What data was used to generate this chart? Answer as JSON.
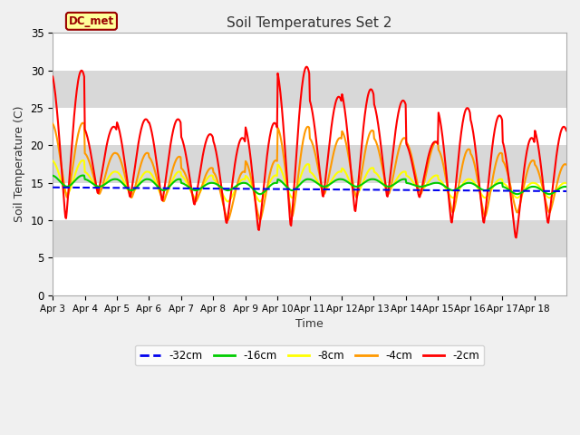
{
  "title": "Soil Temperatures Set 2",
  "xlabel": "Time",
  "ylabel": "Soil Temperature (C)",
  "ylim": [
    0,
    35
  ],
  "yticks": [
    0,
    5,
    10,
    15,
    20,
    25,
    30,
    35
  ],
  "x_labels": [
    "Apr 3",
    "Apr 4",
    "Apr 5",
    "Apr 6",
    "Apr 7",
    "Apr 8",
    "Apr 9",
    "Apr 10",
    "Apr 11",
    "Apr 12",
    "Apr 13",
    "Apr 14",
    "Apr 15",
    "Apr 16",
    "Apr 17",
    "Apr 18"
  ],
  "dc_met_label": "DC_met",
  "legend_labels": [
    "-32cm",
    "-16cm",
    "-8cm",
    "-4cm",
    "-2cm"
  ],
  "colors": {
    "-32cm": "#0000ee",
    "-16cm": "#00cc00",
    "-8cm": "#ffff00",
    "-4cm": "#ff9900",
    "-2cm": "#ff0000"
  },
  "title_fontsize": 11,
  "n_days": 16,
  "pts_per_day": 48,
  "band_colors": [
    "#ffffff",
    "#e8e8e8"
  ],
  "fig_bg": "#f0f0f0",
  "plot_bg": "#e8e8e8",
  "dc_met_bg": "#ffff99",
  "dc_met_border": "#990000",
  "dc_met_text": "#990000",
  "day_peaks_2cm": [
    30,
    22.5,
    23.5,
    23.5,
    21.5,
    21,
    23,
    30.5,
    26.5,
    27.5,
    26,
    20.5,
    25,
    24,
    21,
    22.5
  ],
  "day_mins_2cm": [
    10,
    13.5,
    13,
    12.5,
    12,
    9.5,
    8.5,
    9,
    13,
    11,
    13,
    13,
    9.5,
    9.5,
    7.5,
    9.5
  ],
  "day_peaks_4cm": [
    23,
    19,
    19,
    18.5,
    17,
    16.5,
    18,
    22.5,
    21,
    22,
    21,
    20.5,
    19.5,
    19,
    18,
    17.5
  ],
  "day_mins_4cm": [
    13,
    13.5,
    13,
    12.5,
    12.5,
    10,
    10,
    10.5,
    13.5,
    13,
    13.5,
    13.5,
    11,
    10.5,
    11,
    11
  ],
  "day_peaks_8cm": [
    18,
    16.5,
    16.5,
    16.5,
    16,
    15.5,
    16,
    17.5,
    16.5,
    17,
    16.5,
    16,
    15.5,
    15.5,
    15,
    15
  ],
  "day_mins_8cm": [
    13.5,
    14,
    13.5,
    13,
    13,
    12.5,
    12.5,
    13,
    14,
    13.5,
    14,
    14,
    13,
    13,
    13,
    13
  ],
  "day_peaks_16cm": [
    16,
    15.5,
    15.5,
    15.5,
    15,
    15,
    15,
    15.5,
    15.5,
    15.5,
    15.5,
    15,
    15,
    15,
    14.5,
    14.5
  ],
  "day_mins_16cm": [
    14.5,
    14.5,
    14,
    14,
    14,
    14,
    13.5,
    14,
    14.5,
    14.5,
    14.5,
    14.5,
    14,
    14,
    13.5,
    13.5
  ]
}
